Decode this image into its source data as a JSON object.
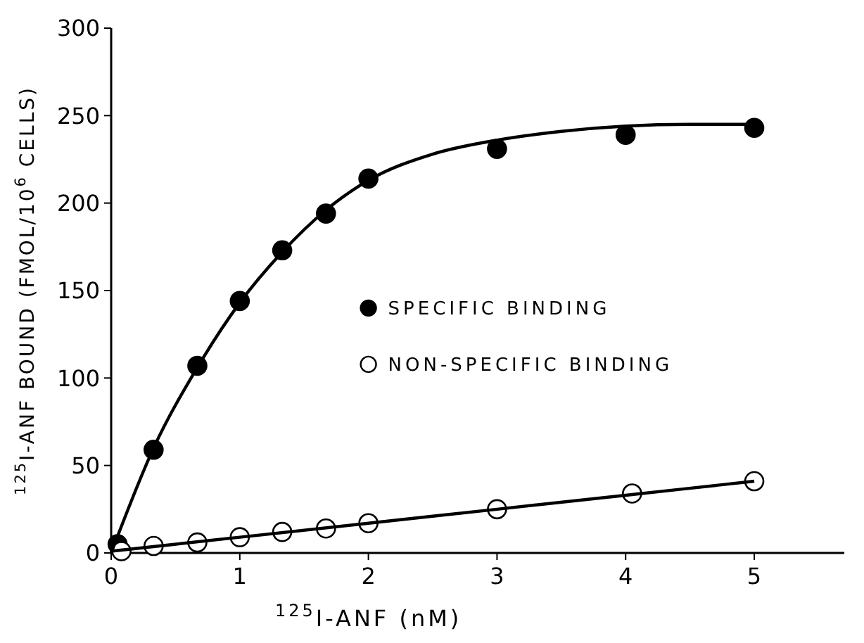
{
  "chart_data": {
    "type": "scatter",
    "xlabel": "$^{125}$I-ANF (nM)",
    "ylabel": "$^{125}$I-ANF BOUND (FMOL/10$^{6}$ CELLS)",
    "xlim": [
      0,
      5.7
    ],
    "ylim": [
      0,
      300
    ],
    "xticks": [
      0,
      1,
      2,
      3,
      4,
      5
    ],
    "yticks": [
      0,
      50,
      100,
      150,
      200,
      250,
      300
    ],
    "grid": false,
    "legend": "right",
    "series": [
      {
        "name": "SPECIFIC BINDING",
        "marker": "circle",
        "color": "#000000",
        "x": [
          0.05,
          0.33,
          0.67,
          1,
          1.33,
          1.67,
          2,
          3,
          4,
          5
        ],
        "values": [
          5,
          59,
          107,
          144,
          173,
          194,
          214,
          231,
          239,
          243
        ]
      },
      {
        "name": "NON-SPECIFIC BINDING",
        "marker": "circle",
        "color": "#ffffff",
        "x": [
          0.08,
          0.33,
          0.67,
          1,
          1.33,
          1.67,
          2,
          3,
          4.05,
          5
        ],
        "values": [
          1,
          4,
          6,
          9,
          12,
          14,
          17,
          25,
          34,
          41
        ]
      },
      {
        "type": "line",
        "color": "#000000",
        "x": [
          0,
          0.33,
          0.67,
          1,
          1.33,
          1.67,
          2,
          2.5,
          3,
          3.5,
          4,
          4.5,
          5
        ],
        "values": [
          0,
          60,
          106,
          143,
          172,
          196,
          213,
          228,
          236,
          241,
          244,
          245,
          245
        ]
      },
      {
        "type": "line",
        "color": "#000000",
        "x": [
          0,
          1,
          2,
          3,
          4,
          5
        ],
        "values": [
          1,
          9,
          17,
          25,
          33,
          41
        ]
      }
    ]
  }
}
